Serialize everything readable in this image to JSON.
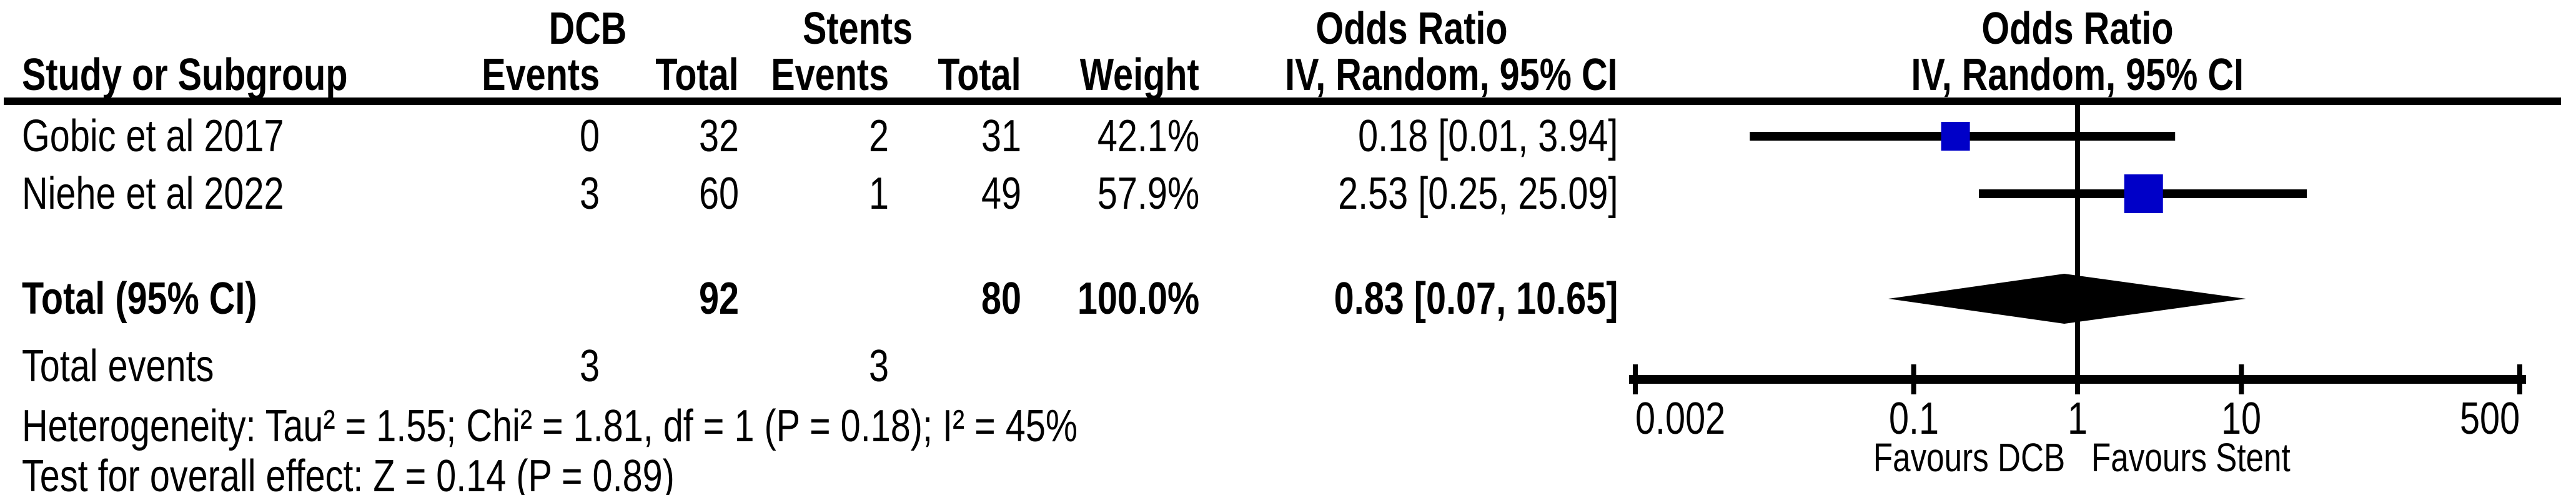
{
  "table": {
    "group_headers": {
      "dcb": "DCB",
      "stents": "Stents",
      "odds_ratio_left": "Odds Ratio",
      "odds_ratio_right": "Odds Ratio"
    },
    "col_headers": {
      "study": "Study or Subgroup",
      "dcb_events": "Events",
      "dcb_total": "Total",
      "stent_events": "Events",
      "stent_total": "Total",
      "weight": "Weight",
      "or_ci": "IV, Random, 95% CI",
      "or_ci_right": "IV, Random, 95% CI"
    },
    "rows": [
      {
        "study": "Gobic et al 2017",
        "dcb_events": "0",
        "dcb_total": "32",
        "stent_events": "2",
        "stent_total": "31",
        "weight": "42.1%",
        "or_ci": "0.18 [0.01, 3.94]"
      },
      {
        "study": "Niehe et al 2022",
        "dcb_events": "3",
        "dcb_total": "60",
        "stent_events": "1",
        "stent_total": "49",
        "weight": "57.9%",
        "or_ci": "2.53 [0.25, 25.09]"
      }
    ],
    "total": {
      "label": "Total (95% CI)",
      "dcb_total": "92",
      "stent_total": "80",
      "weight": "100.0%",
      "or_ci": "0.83 [0.07, 10.65]"
    },
    "total_events": {
      "label": "Total events",
      "dcb": "3",
      "stents": "3"
    },
    "heterogeneity": "Heterogeneity: Tau² = 1.55; Chi² = 1.81, df = 1 (P = 0.18); I² = 45%",
    "overall_effect": "Test for overall effect: Z = 0.14 (P = 0.89)"
  },
  "chart_data": {
    "type": "forest",
    "x_scale": "log10",
    "axis_range": [
      0.002,
      500
    ],
    "axis_ticks": [
      {
        "value": 0.002,
        "label": "0.002"
      },
      {
        "value": 0.1,
        "label": "0.1"
      },
      {
        "value": 1,
        "label": "1"
      },
      {
        "value": 10,
        "label": "10"
      },
      {
        "value": 500,
        "label": "500"
      }
    ],
    "null_line_value": 1,
    "favours_left": "Favours DCB",
    "favours_right": "Favours Stent",
    "marker_color": "#0000C8",
    "line_color": "#000000",
    "studies": [
      {
        "name": "Gobic et al 2017",
        "or": 0.18,
        "ci_low": 0.01,
        "ci_high": 3.94,
        "weight_pct": 42.1
      },
      {
        "name": "Niehe et al 2022",
        "or": 2.53,
        "ci_low": 0.25,
        "ci_high": 25.09,
        "weight_pct": 57.9
      }
    ],
    "total": {
      "or": 0.83,
      "ci_low": 0.07,
      "ci_high": 10.65,
      "weight_pct": 100.0
    }
  }
}
